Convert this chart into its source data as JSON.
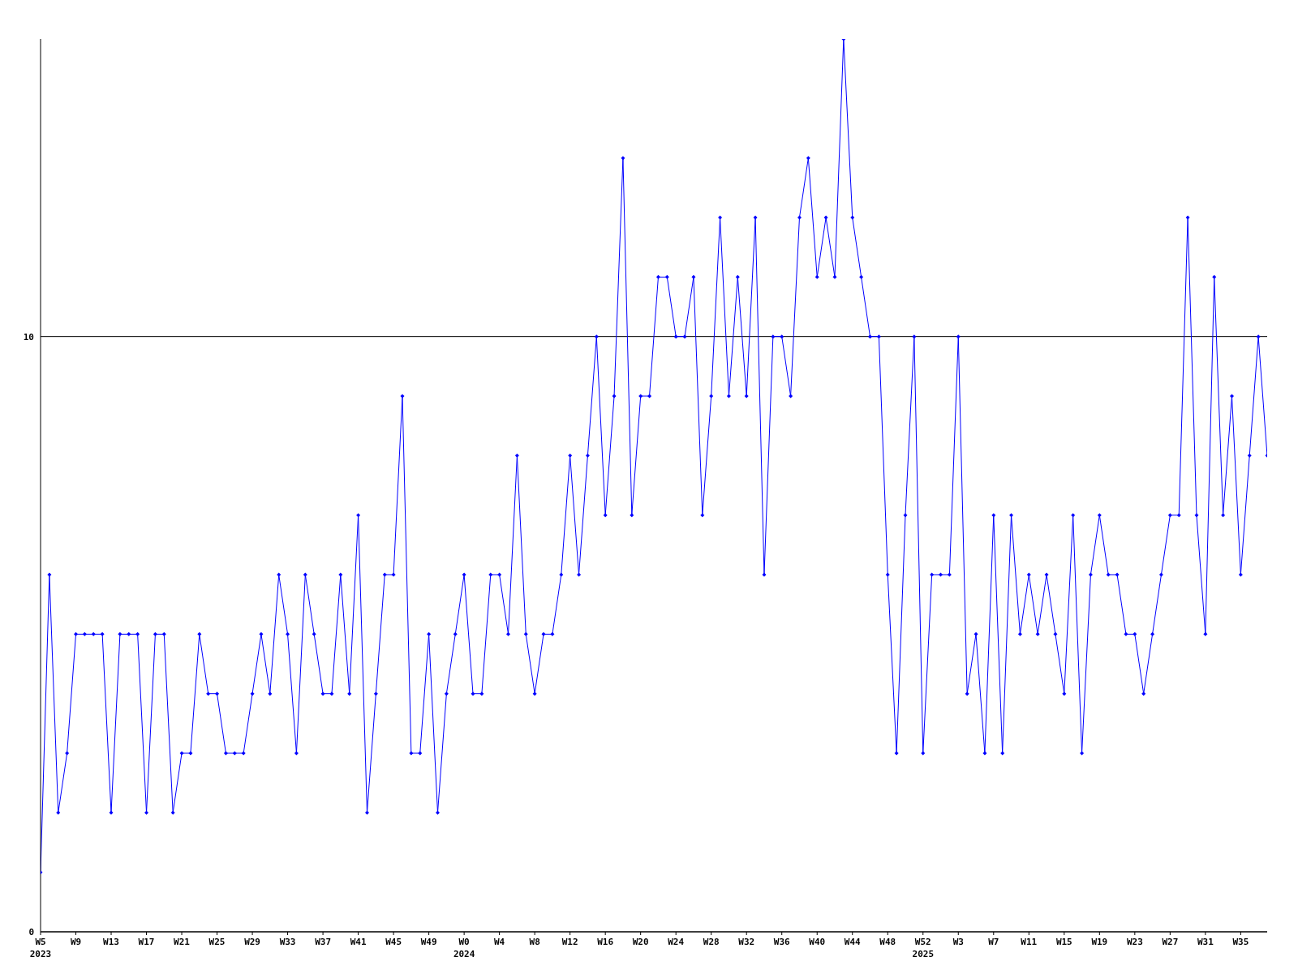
{
  "chart_data": {
    "type": "line",
    "categories": [
      "W5\n2023",
      null,
      null,
      null,
      "W9",
      null,
      null,
      null,
      "W13",
      null,
      null,
      null,
      "W17",
      null,
      null,
      null,
      "W21",
      null,
      null,
      null,
      "W25",
      null,
      null,
      null,
      "W29",
      null,
      null,
      null,
      "W33",
      null,
      null,
      null,
      "W37",
      null,
      null,
      null,
      "W41",
      null,
      null,
      null,
      "W45",
      null,
      null,
      null,
      "W49",
      null,
      null,
      null,
      "W0\n2024",
      null,
      null,
      null,
      "W4",
      null,
      null,
      null,
      "W8",
      null,
      null,
      null,
      "W12",
      null,
      null,
      null,
      "W16",
      null,
      null,
      null,
      "W20",
      null,
      null,
      null,
      "W24",
      null,
      null,
      null,
      "W28",
      null,
      null,
      null,
      "W32",
      null,
      null,
      null,
      "W36",
      null,
      null,
      null,
      "W40",
      null,
      null,
      null,
      "W44",
      null,
      null,
      null,
      "W48",
      null,
      null,
      null,
      "W52\n2025",
      null,
      null,
      null,
      "W3",
      null,
      null,
      null,
      "W7",
      null,
      null,
      null,
      "W11",
      null,
      null,
      null,
      "W15",
      null,
      null,
      null,
      "W19",
      null,
      null,
      null,
      "W23",
      null,
      null,
      null,
      "W27",
      null,
      null,
      null,
      "W31",
      null,
      null,
      null,
      "W35",
      null,
      null,
      null
    ],
    "series": [
      {
        "color": "#0000ff",
        "values": [
          1,
          6,
          2,
          3,
          5,
          5,
          5,
          5,
          2,
          5,
          5,
          5,
          2,
          5,
          5,
          2,
          3,
          3,
          5,
          4,
          4,
          3,
          3,
          3,
          4,
          5,
          4,
          6,
          5,
          3,
          6,
          5,
          4,
          4,
          6,
          4,
          7,
          2,
          4,
          6,
          6,
          9,
          3,
          3,
          5,
          2,
          4,
          5,
          6,
          4,
          4,
          6,
          6,
          5,
          8,
          5,
          4,
          5,
          5,
          6,
          8,
          6,
          8,
          10,
          7,
          9,
          13,
          7,
          9,
          9,
          11,
          11,
          10,
          10,
          11,
          7,
          9,
          12,
          9,
          11,
          9,
          12,
          6,
          10,
          10,
          9,
          12,
          13,
          11,
          12,
          11,
          15,
          12,
          11,
          10,
          10,
          6,
          3,
          7,
          10,
          3,
          6,
          6,
          6,
          10,
          4,
          5,
          3,
          7,
          3,
          7,
          5,
          6,
          5,
          6,
          5,
          4,
          7,
          3,
          6,
          7,
          6,
          6,
          5,
          5,
          4,
          5,
          6,
          7,
          7,
          12,
          7,
          5,
          11,
          7,
          9,
          6,
          8,
          10,
          8
        ]
      }
    ],
    "ylim": [
      0,
      15
    ],
    "yticks": [
      0,
      10
    ],
    "grid": "y",
    "marker": "diamond",
    "line_style": "solid"
  }
}
